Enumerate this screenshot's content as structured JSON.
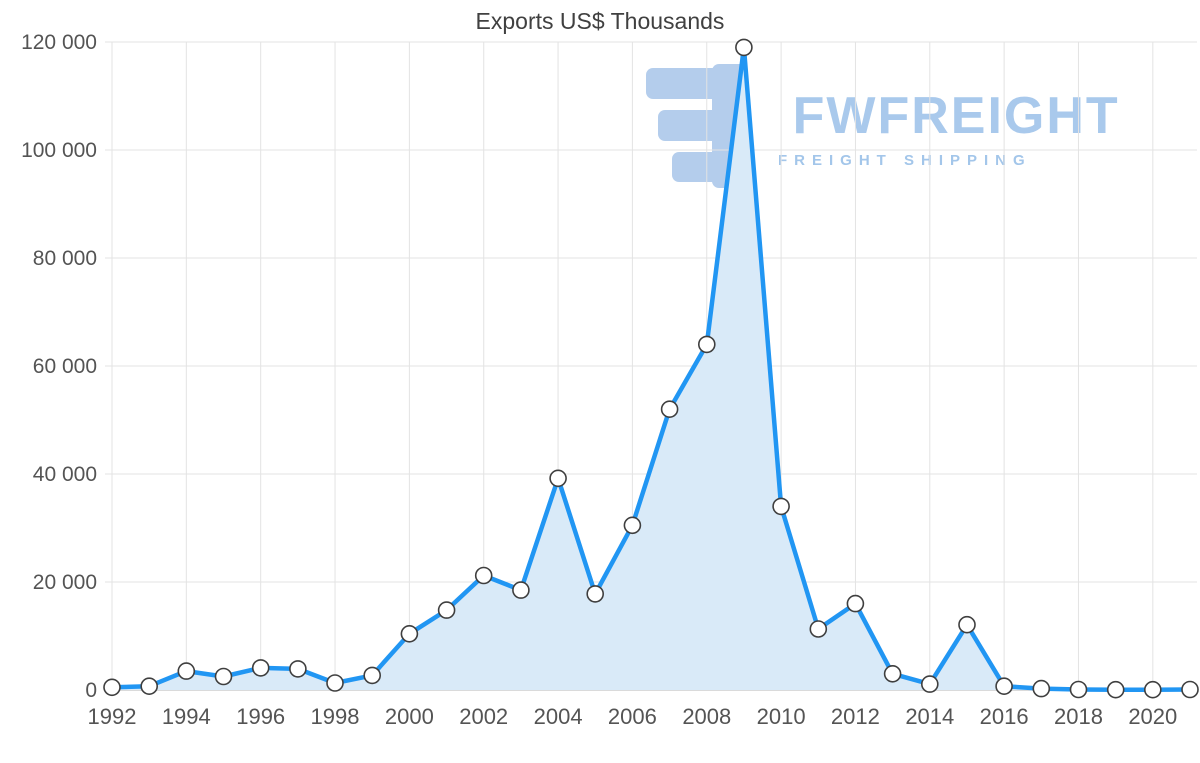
{
  "watermark": {
    "brand": "FWFREIGHT",
    "tagline": "FREIGHT SHIPPING",
    "color": "#a9c9ec",
    "icon_color": "#b0cbec"
  },
  "chart_data": {
    "type": "area",
    "title": "Exports US$ Thousands",
    "xlabel": "",
    "ylabel": "",
    "x": [
      1992,
      1993,
      1994,
      1995,
      1996,
      1997,
      1998,
      1999,
      2000,
      2001,
      2002,
      2003,
      2004,
      2005,
      2006,
      2007,
      2008,
      2009,
      2010,
      2011,
      2012,
      2013,
      2014,
      2015,
      2016,
      2017,
      2018,
      2019,
      2020,
      2021
    ],
    "values": [
      500,
      700,
      3500,
      2500,
      4100,
      3900,
      1300,
      2700,
      10400,
      14800,
      21200,
      18500,
      39200,
      17800,
      30500,
      52000,
      64000,
      119000,
      34000,
      11300,
      16000,
      3000,
      1100,
      12100,
      700,
      250,
      100,
      50,
      50,
      100
    ],
    "ylim": [
      0,
      120000
    ],
    "y_ticks": [
      0,
      20000,
      40000,
      60000,
      80000,
      100000,
      120000
    ],
    "y_tick_labels": [
      "0",
      "20 000",
      "40 000",
      "60 000",
      "80 000",
      "100 000",
      "120 000"
    ],
    "x_tick_years": [
      1992,
      1994,
      1996,
      1998,
      2000,
      2002,
      2004,
      2006,
      2008,
      2010,
      2012,
      2014,
      2016,
      2018,
      2020
    ],
    "x_tick_labels": [
      "1992",
      "1994",
      "1996",
      "1998",
      "2000",
      "2002",
      "2004",
      "2006",
      "2008",
      "2010",
      "2012",
      "2014",
      "2016",
      "2018",
      "2020"
    ],
    "grid": true,
    "legend": "none",
    "colors": {
      "line": "#2196f3",
      "area": "#d9eaf8",
      "marker_fill": "#ffffff",
      "marker_stroke": "#3f3f3f",
      "grid": "#e3e3e3",
      "axis": "#c4c4c4",
      "text": "#545454",
      "title": "#404040"
    }
  }
}
